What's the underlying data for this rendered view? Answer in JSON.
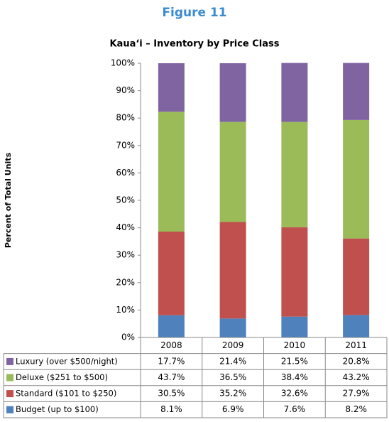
{
  "chart_data": {
    "type": "stacked_bar",
    "figure_label": "Figure 11",
    "title": "Kaua‘i – Inventory by Price Class",
    "y_label": "Percent of Total Units",
    "categories": [
      "2008",
      "2009",
      "2010",
      "2011"
    ],
    "series": [
      {
        "name": "Luxury (over $500/night)",
        "color": "#8064a2",
        "values": [
          17.7,
          21.4,
          21.5,
          20.8
        ],
        "value_labels": [
          "17.7%",
          "21.4%",
          "21.5%",
          "20.8%"
        ]
      },
      {
        "name": "Deluxe ($251 to $500)",
        "color": "#9bbb59",
        "values": [
          43.7,
          36.5,
          38.4,
          43.2
        ],
        "value_labels": [
          "43.7%",
          "36.5%",
          "38.4%",
          "43.2%"
        ]
      },
      {
        "name": "Standard ($101 to $250)",
        "color": "#c0504d",
        "values": [
          30.5,
          35.2,
          32.6,
          27.9
        ],
        "value_labels": [
          "30.5%",
          "35.2%",
          "32.6%",
          "27.9%"
        ]
      },
      {
        "name": "Budget (up to $100)",
        "color": "#4f81bd",
        "values": [
          8.1,
          6.9,
          7.6,
          8.2
        ],
        "value_labels": [
          "8.1%",
          "6.9%",
          "7.6%",
          "8.2%"
        ]
      }
    ],
    "ylim": [
      0,
      100
    ],
    "yticks": [
      {
        "value": 0,
        "label": "0%"
      },
      {
        "value": 10,
        "label": "10%"
      },
      {
        "value": 20,
        "label": "20%"
      },
      {
        "value": 30,
        "label": "30%"
      },
      {
        "value": 40,
        "label": "40%"
      },
      {
        "value": 50,
        "label": "50%"
      },
      {
        "value": 60,
        "label": "60%"
      },
      {
        "value": 70,
        "label": "70%"
      },
      {
        "value": 80,
        "label": "80%"
      },
      {
        "value": 90,
        "label": "90%"
      },
      {
        "value": 100,
        "label": "100%"
      }
    ]
  }
}
